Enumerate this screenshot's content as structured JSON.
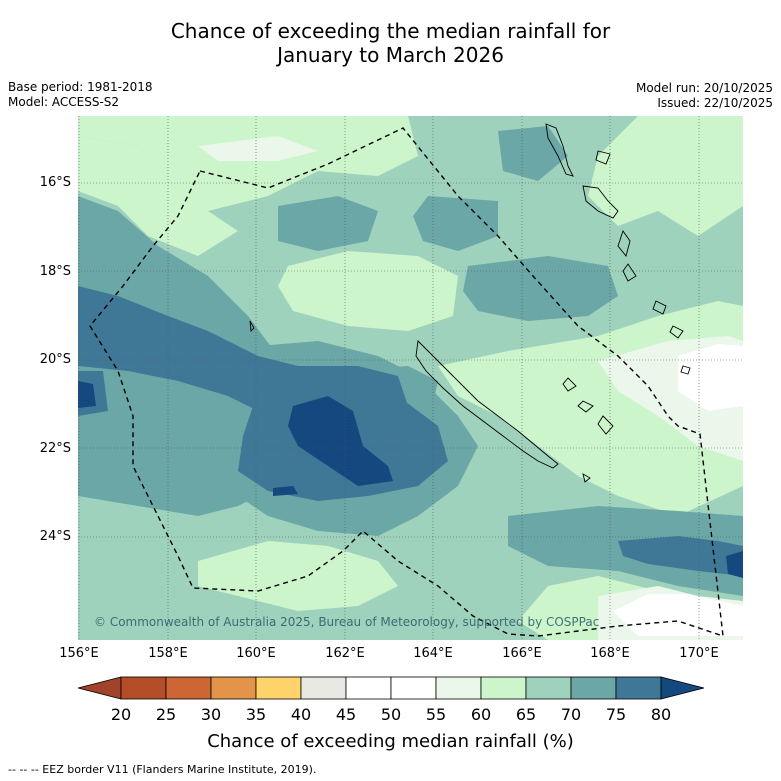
{
  "title": {
    "line1": "Chance of exceeding the median rainfall for",
    "line2": "January to March 2026"
  },
  "meta": {
    "base_period": "Base period: 1981-2018",
    "model": "Model: ACCESS-S2",
    "model_run": "Model run: 20/10/2025",
    "issued": "Issued: 22/10/2025"
  },
  "map": {
    "copyright": "© Commonwealth of Australia 2025, Bureau of Meteorology, supported by COSPPac",
    "lat_labels": [
      "16°S",
      "18°S",
      "20°S",
      "22°S",
      "24°S"
    ],
    "lon_labels": [
      "156°E",
      "158°E",
      "160°E",
      "162°E",
      "164°E",
      "166°E",
      "168°E",
      "170°E"
    ],
    "colors": {
      "c35": "#fdd36a",
      "c40": "#e9e9e3",
      "c45": "#ffffff",
      "c55": "#eaf7ea",
      "c60": "#ccf5cc",
      "c65": "#9fd2bd",
      "c70": "#6ba7a7",
      "c75": "#3f7896",
      "c80": "#14487f",
      "eez": "#000000"
    }
  },
  "colorbar": {
    "ticks": [
      "20",
      "25",
      "30",
      "35",
      "40",
      "45",
      "50",
      "55",
      "60",
      "65",
      "70",
      "75",
      "80"
    ],
    "colors": [
      "#a0432a",
      "#b54e27",
      "#cd6535",
      "#e29548",
      "#fdd36a",
      "#e9e9e3",
      "#ffffff",
      "#ffffff",
      "#eaf7ea",
      "#ccf5cc",
      "#9fd2bd",
      "#6ba7a7",
      "#3f7896",
      "#14487f"
    ],
    "label": "Chance of exceeding median rainfall (%)"
  },
  "footnote": "--  --  -- EEZ border V11 (Flanders Marine Institute, 2019)."
}
